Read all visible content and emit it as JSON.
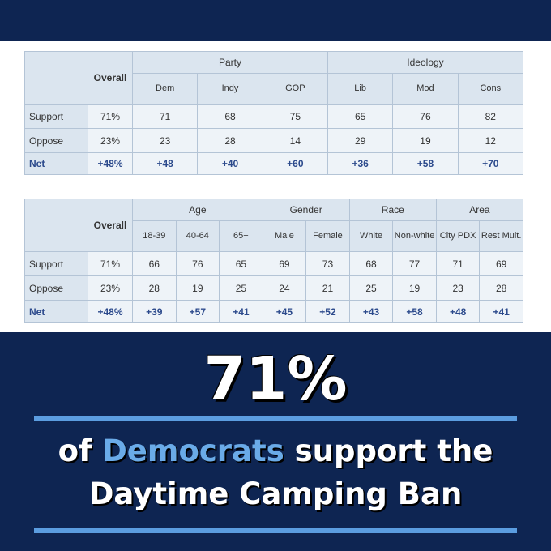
{
  "tables": [
    {
      "overall": "Overall",
      "groups": [
        {
          "label": "Party",
          "columns": [
            "Dem",
            "Indy",
            "GOP"
          ]
        },
        {
          "label": "Ideology",
          "columns": [
            "Lib",
            "Mod",
            "Cons"
          ]
        }
      ],
      "rows": [
        {
          "label": "Support",
          "overall": "71%",
          "values": [
            "71",
            "68",
            "75",
            "65",
            "76",
            "82"
          ]
        },
        {
          "label": "Oppose",
          "overall": "23%",
          "values": [
            "23",
            "28",
            "14",
            "29",
            "19",
            "12"
          ]
        },
        {
          "label": "Net",
          "overall": "+48%",
          "values": [
            "+48",
            "+40",
            "+60",
            "+36",
            "+58",
            "+70"
          ]
        }
      ]
    },
    {
      "overall": "Overall",
      "groups": [
        {
          "label": "Age",
          "columns": [
            "18-39",
            "40-64",
            "65+"
          ]
        },
        {
          "label": "Gender",
          "columns": [
            "Male",
            "Female"
          ]
        },
        {
          "label": "Race",
          "columns": [
            "White",
            "Non-white"
          ]
        },
        {
          "label": "Area",
          "columns": [
            "City PDX",
            "Rest Mult."
          ]
        }
      ],
      "rows": [
        {
          "label": "Support",
          "overall": "71%",
          "values": [
            "66",
            "76",
            "65",
            "69",
            "73",
            "68",
            "77",
            "71",
            "69"
          ]
        },
        {
          "label": "Oppose",
          "overall": "23%",
          "values": [
            "28",
            "19",
            "25",
            "24",
            "21",
            "25",
            "19",
            "23",
            "28"
          ]
        },
        {
          "label": "Net",
          "overall": "+48%",
          "values": [
            "+39",
            "+57",
            "+41",
            "+45",
            "+52",
            "+43",
            "+58",
            "+48",
            "+41"
          ]
        }
      ]
    }
  ],
  "headline": "71%",
  "caption": {
    "line1_before": "of",
    "highlight": "Democrats",
    "line1_after": "support the",
    "line2": "Daytime Camping Ban"
  }
}
